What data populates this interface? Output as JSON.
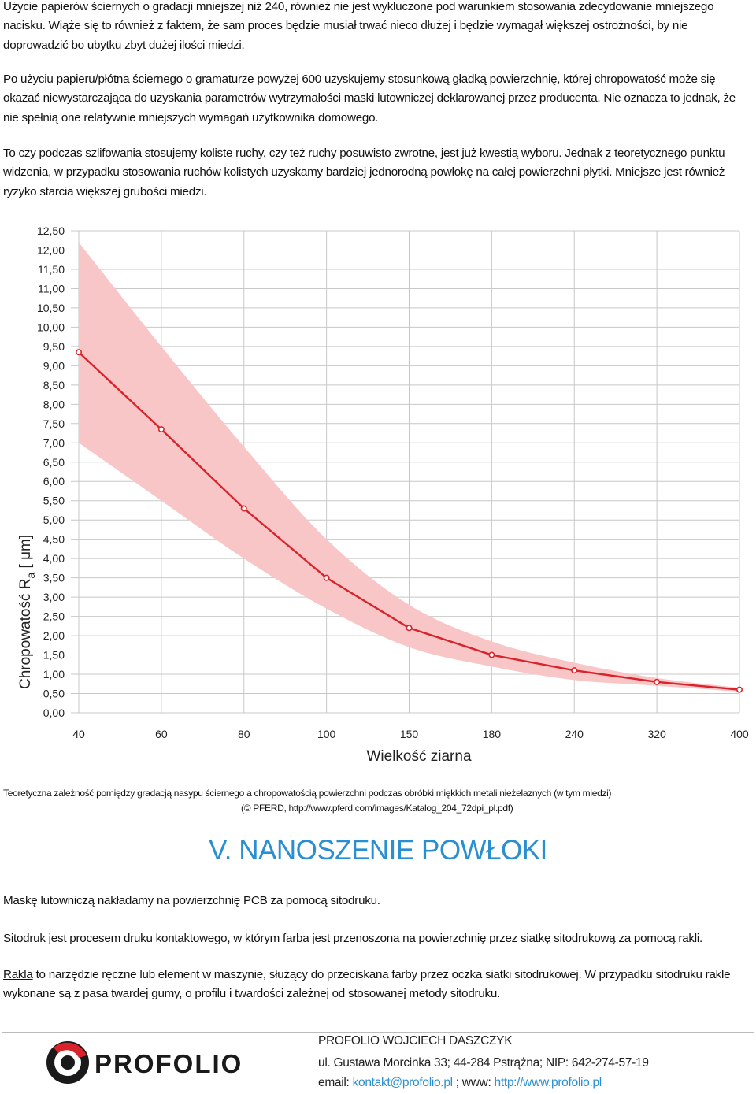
{
  "paragraphs": {
    "p1": "Użycie papierów ściernych o gradacji mniejszej niż 240, również nie jest wykluczone pod warunkiem stosowania zdecydowanie mniejszego nacisku. Wiąże się to również z faktem, że sam proces będzie musiał trwać nieco dłużej i będzie wymagał większej ostrożności, by nie doprowadzić bo ubytku zbyt dużej ilości miedzi.",
    "p2": "Po użyciu papieru/płótna ściernego o gramaturze powyżej 600 uzyskujemy stosunkową gładką powierzchnię, której chropowatość może się okazać niewystarczająca do uzyskania parametrów wytrzymałości maski lutowniczej deklarowanej przez producenta. Nie oznacza to jednak, że nie spełnią one relatywnie mniejszych wymagań użytkownika domowego.",
    "p3": "To czy podczas szlifowania stosujemy koliste ruchy, czy też ruchy posuwisto zwrotne, jest już kwestią wyboru. Jednak z teoretycznego punktu widzenia, w przypadku stosowania ruchów kolistych uzyskamy bardziej jednorodną powłokę na całej powierzchni płytki. Mniejsze jest również ryzyko starcia większej grubości miedzi."
  },
  "chart_data": {
    "type": "line",
    "title": "",
    "xlabel": "Wielkość ziarna",
    "ylabel_main": "Chropowatość R",
    "ylabel_sub": "a",
    "ylabel_unit": " [ μm]",
    "categories": [
      "40",
      "60",
      "80",
      "100",
      "150",
      "180",
      "240",
      "320",
      "400"
    ],
    "series": [
      {
        "values": [
          9.35,
          7.35,
          5.3,
          3.5,
          2.2,
          1.5,
          1.1,
          0.8,
          0.6
        ],
        "band_upper": [
          12.2,
          9.5,
          6.9,
          4.5,
          2.8,
          1.85,
          1.3,
          0.9,
          0.65
        ],
        "band_lower": [
          7.0,
          5.5,
          4.0,
          2.7,
          1.7,
          1.2,
          0.85,
          0.7,
          0.55
        ]
      }
    ],
    "yticks": [
      "0,00",
      "0,50",
      "1,00",
      "1,50",
      "2,00",
      "2,50",
      "3,00",
      "3,50",
      "4,00",
      "4,50",
      "5,00",
      "5,50",
      "6,00",
      "6,50",
      "7,00",
      "7,50",
      "8,00",
      "8,50",
      "9,00",
      "9,50",
      "10,00",
      "10,50",
      "11,00",
      "11,50",
      "12,00",
      "12,50"
    ],
    "ylim": [
      0,
      12.5
    ],
    "grid": true,
    "colors": {
      "line": "#d9232a",
      "band": "#f9c6c8",
      "grid": "#c8c8c8"
    }
  },
  "caption": {
    "line1": "Teoretyczna zależność pomiędzy gradacją nasypu ściernego a chropowatością powierzchni podczas obróbki miękkich metali nieżelaznych (w tym miedzi)",
    "line2": "(© PFERD, http://www.pferd.com/images/Katalog_204_72dpi_pl.pdf)"
  },
  "section": {
    "title": "V. NANOSZENIE POWŁOKI",
    "p4": "Maskę lutowniczą nakładamy na powierzchnię PCB za pomocą sitodruku.",
    "p5": "Sitodruk jest procesem druku kontaktowego, w którym farba jest przenoszona na powierzchnię przez siatkę sitodrukową za pomocą rakli.",
    "p6_term": "Rakla",
    "p6_rest": " to narzędzie ręczne lub element w maszynie, służący do przeciskana farby przez oczka siatki sitodrukowej. W przypadku sitodruku rakle wykonane są z pasa twardej gumy, o profilu i twardości zależnej od stosowanej metody sitodruku."
  },
  "footer": {
    "logo_text": "PROFOLIO",
    "company": "PROFOLIO WOJCIECH DASZCZYK",
    "address": "ul. Gustawa Morcinka 33; 44-284 Pstrążna; NIP: 642-274-57-19",
    "email_label": "email: ",
    "email": "kontakt@profolio.pl",
    "www_label": " ; www: ",
    "www": "http://www.profolio.pl",
    "colors": {
      "accent": "#2a8fd0",
      "logo_red": "#d9232a"
    }
  }
}
